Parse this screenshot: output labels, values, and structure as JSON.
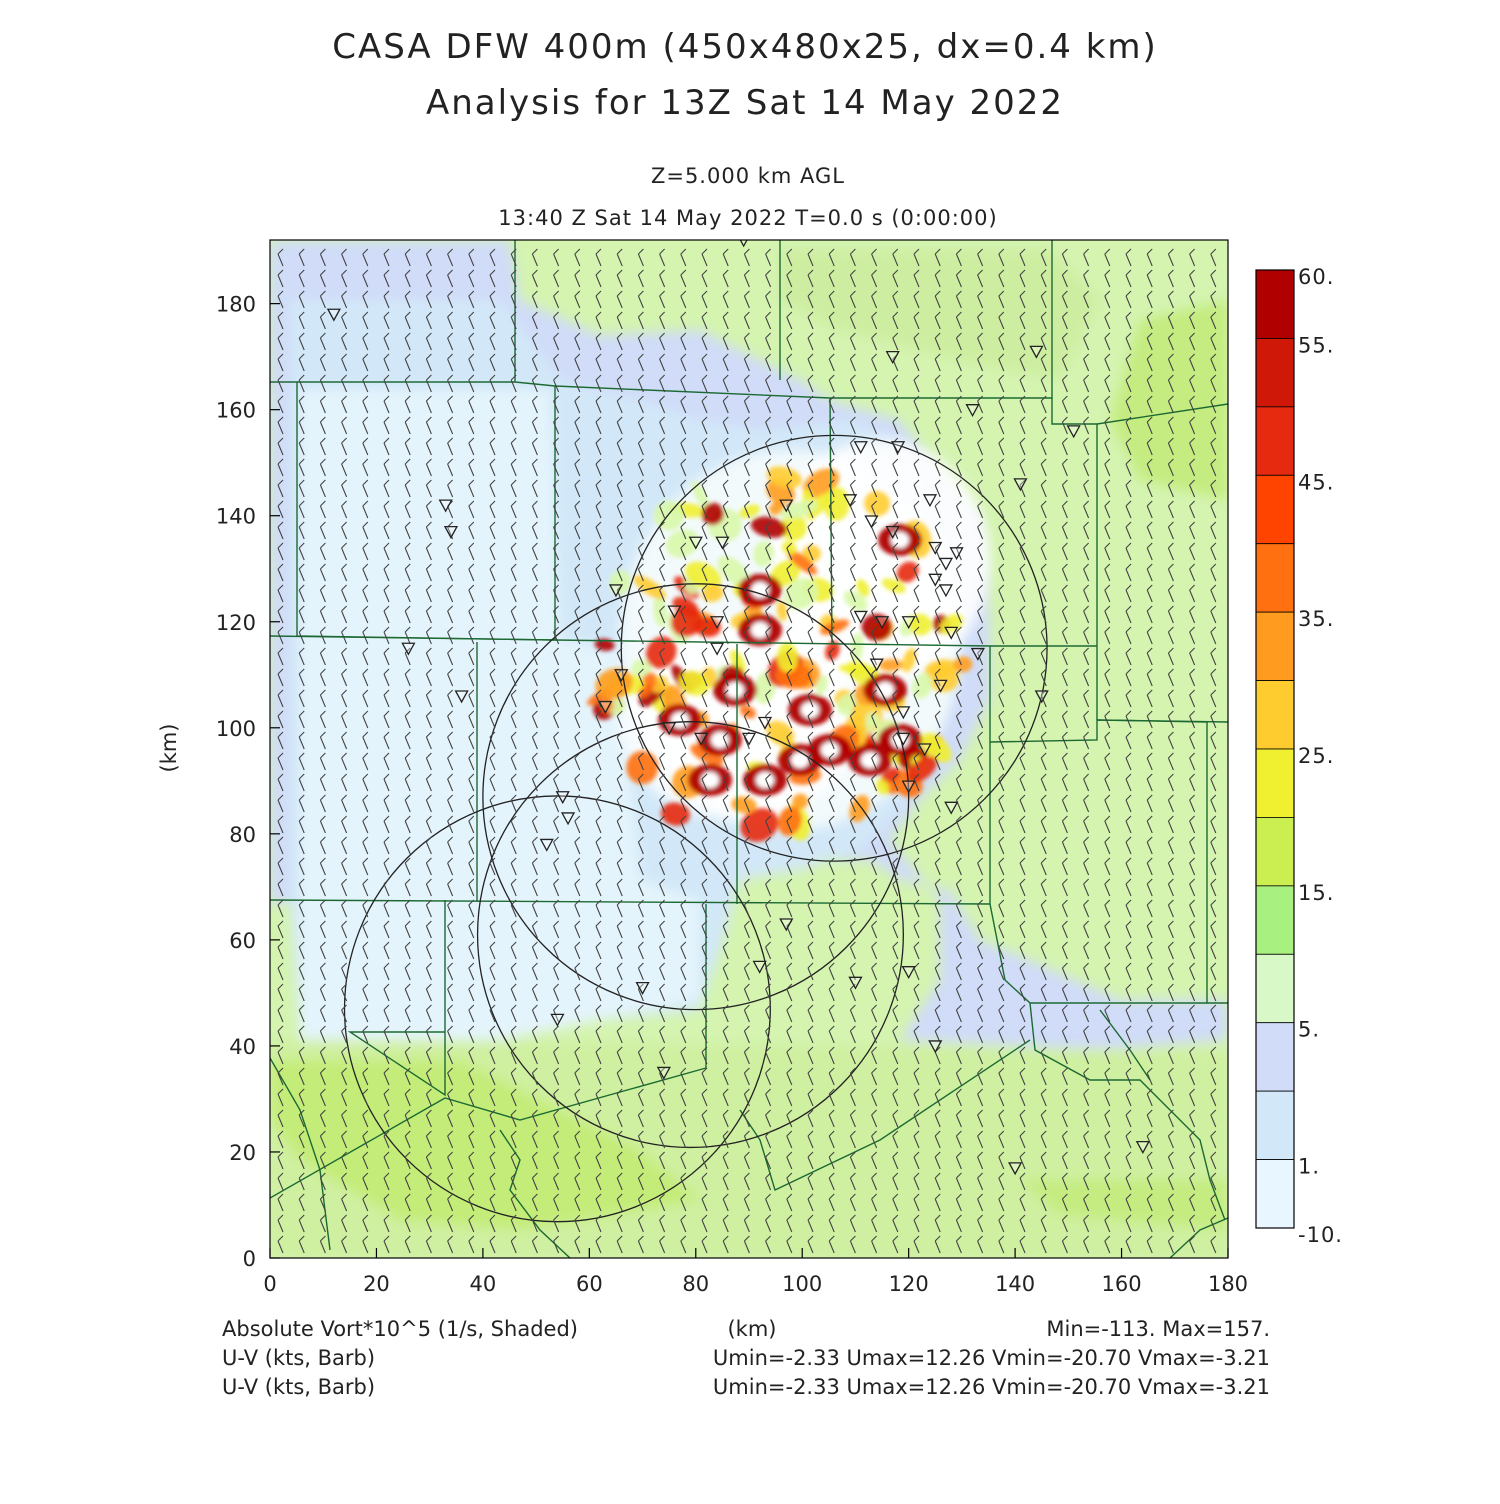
{
  "title_line1": "CASA DFW 400m (450x480x25, dx=0.4 km)",
  "title_line2": "Analysis for 13Z Sat 14 May 2022",
  "subtitle_level": "Z=5.000 km AGL",
  "subtitle_time": "13:40 Z Sat 14 May 2022    T=0.0 s (0:00:00)",
  "axis": {
    "ylabel": "(km)",
    "xlabel": "(km)",
    "x_ticks": [
      "0",
      "20",
      "40",
      "60",
      "80",
      "100",
      "120",
      "140",
      "160",
      "180"
    ],
    "y_ticks": [
      "0",
      "20",
      "40",
      "60",
      "80",
      "100",
      "120",
      "140",
      "160",
      "180"
    ]
  },
  "colorbar": {
    "labels": [
      "60.",
      "55.",
      "45.",
      "35.",
      "25.",
      "15.",
      "5.",
      "1.",
      "-10."
    ],
    "colors": [
      "#b00000",
      "#d01808",
      "#e62a10",
      "#ff4400",
      "#ff7010",
      "#ff9c20",
      "#ffcc30",
      "#f0f030",
      "#cbee50",
      "#a8f080",
      "#d8f8c8",
      "#d0dcf8",
      "#d2e8f8",
      "#e8f6ff"
    ]
  },
  "footer": {
    "field1": "Absolute Vort*10^5 (1/s, Shaded)",
    "xunit": "(km)",
    "minmax": "Min=-113. Max=157.",
    "field2": "U-V (kts, Barb)",
    "uv_stats": "Umin=-2.33 Umax=12.26 Vmin=-20.70 Vmax=-3.21",
    "field3": "U-V (kts, Barb)",
    "uv_stats2": "Umin=-2.33 Umax=12.26 Vmin=-20.70 Vmax=-3.21"
  },
  "chart_data": {
    "type": "heatmap",
    "field": "Absolute Vort*10^5",
    "units": "1/s",
    "xlim": [
      0,
      180
    ],
    "ylim": [
      0,
      192
    ],
    "color_levels": [
      -10,
      1,
      5,
      15,
      25,
      35,
      45,
      55,
      60
    ],
    "field_min": -113,
    "field_max": 157,
    "wind": {
      "umin": -2.33,
      "umax": 12.26,
      "vmin": -20.7,
      "vmax": -3.21
    },
    "radar_rings": [
      {
        "cx": 106,
        "cy": 115,
        "r": 40
      },
      {
        "cx": 80,
        "cy": 87,
        "r": 40
      },
      {
        "cx": 79,
        "cy": 61,
        "r": 40
      },
      {
        "cx": 54,
        "cy": 47,
        "r": 40
      }
    ]
  }
}
